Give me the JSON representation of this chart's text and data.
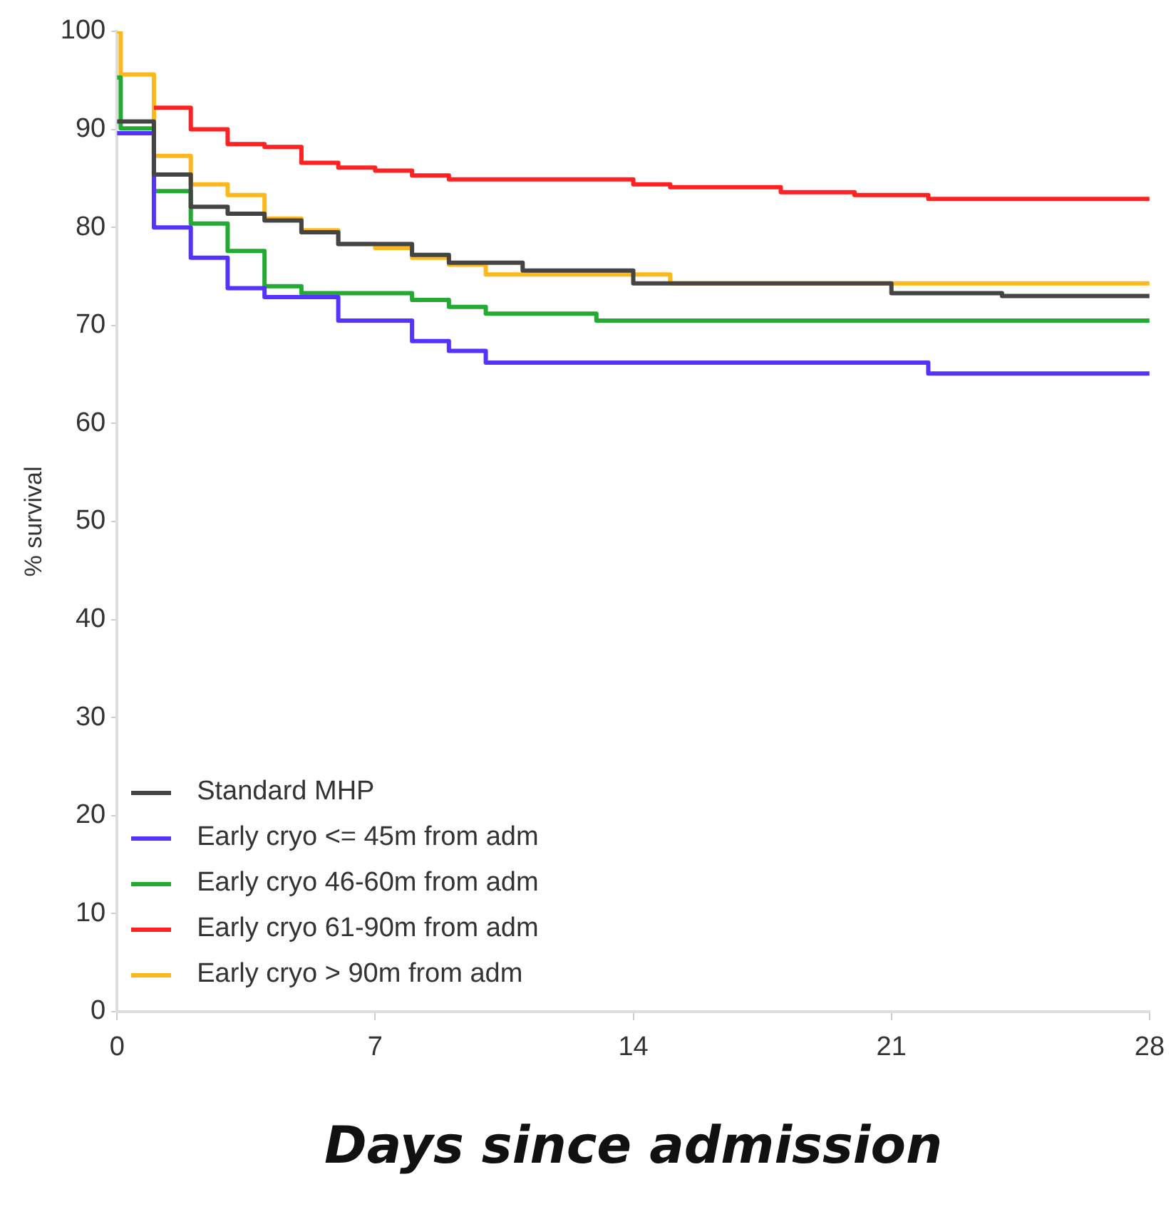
{
  "chart_data": {
    "type": "step",
    "xlabel": "Days since admission",
    "ylabel": "% survival",
    "xlim": [
      0,
      28
    ],
    "xticks": [
      0,
      7,
      14,
      21,
      28
    ],
    "ylim": [
      0,
      100
    ],
    "yticks": [
      0,
      10,
      20,
      30,
      40,
      50,
      60,
      70,
      80,
      90,
      100
    ],
    "grid": false,
    "legend": "bottom left",
    "series": [
      {
        "name": "Standard MHP",
        "color": "#444444",
        "x": [
          0,
          1,
          2,
          3,
          4,
          5,
          6,
          8,
          9,
          11,
          14,
          21,
          24,
          28
        ],
        "values": [
          90.8,
          85.4,
          82.1,
          81.4,
          80.7,
          79.5,
          78.3,
          77.2,
          76.4,
          75.6,
          74.3,
          73.3,
          73.0,
          73.0
        ]
      },
      {
        "name": "Early cryo <= 45m from adm",
        "color": "#5533ff",
        "x": [
          0,
          1,
          2,
          3,
          4,
          6,
          8,
          9,
          10,
          22,
          28
        ],
        "values": [
          89.6,
          80.0,
          76.9,
          73.8,
          72.9,
          70.5,
          68.4,
          67.4,
          66.2,
          65.1,
          65.1
        ]
      },
      {
        "name": "Early cryo 46-60m from adm",
        "color": "#22aa33",
        "x": [
          0,
          0.1,
          1,
          2,
          3,
          4,
          5,
          8,
          9,
          10,
          13,
          28
        ],
        "values": [
          95.3,
          90.1,
          83.7,
          80.4,
          77.6,
          74.0,
          73.3,
          72.6,
          71.9,
          71.2,
          70.5,
          70.5
        ]
      },
      {
        "name": "Early cryo 61-90m from adm",
        "color": "#ff2222",
        "x": [
          1,
          2,
          3,
          4,
          5,
          6,
          7,
          8,
          9,
          14,
          15,
          18,
          20,
          22,
          28
        ],
        "values": [
          92.2,
          90.0,
          88.5,
          88.2,
          86.6,
          86.1,
          85.8,
          85.3,
          84.9,
          84.4,
          84.1,
          83.6,
          83.3,
          82.9,
          82.9
        ]
      },
      {
        "name": "Early cryo > 90m from adm",
        "color": "#ffb81c",
        "x": [
          0,
          0.1,
          1,
          2,
          3,
          4,
          5,
          6,
          7,
          8,
          9,
          10,
          15,
          28
        ],
        "values": [
          100,
          95.6,
          87.3,
          84.4,
          83.3,
          80.9,
          79.7,
          78.3,
          77.9,
          76.9,
          76.2,
          75.2,
          74.3,
          74.3
        ]
      }
    ]
  }
}
